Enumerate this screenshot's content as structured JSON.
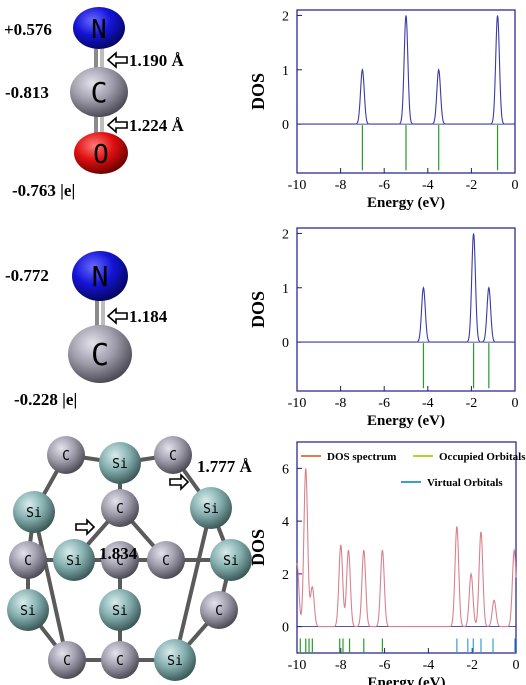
{
  "molecules": {
    "nco": {
      "atoms": [
        {
          "symbol": "N",
          "charge": "+0.576"
        },
        {
          "symbol": "C",
          "charge": "-0.813"
        },
        {
          "symbol": "O",
          "charge": "-0.763 |e|"
        }
      ],
      "bonds": [
        "1.190 Å",
        "1.224 Å"
      ]
    },
    "cn": {
      "atoms": [
        {
          "symbol": "N",
          "charge": "-0.772"
        },
        {
          "symbol": "C",
          "charge": "-0.228 |e|"
        }
      ],
      "bonds": [
        "1.184"
      ]
    },
    "cage": {
      "bond_labels": [
        "1.777 Å",
        "1.834"
      ],
      "atom_labels": [
        "C",
        "Si",
        "C",
        "Si",
        "C",
        "Si",
        "Si",
        "C",
        "C",
        "Si",
        "Si",
        "C",
        "Si",
        "Si",
        "C",
        "C",
        "Si",
        "C"
      ]
    }
  },
  "colors": {
    "dos_line_blue": "#3a3aa8",
    "occupied_green": "#2a9a2a",
    "dos_line_red": "#d9828c",
    "occupied_yellowgreen": "#b8d02a",
    "virtual_blue": "#3aa0d0",
    "legend_dos": "#e07a4a",
    "atom_N": "#1010d0",
    "atom_C": "#9a98a6",
    "atom_O": "#e01010",
    "atom_Si": "#7aa8a8",
    "axes": "#1a1a8c"
  },
  "chart_data": [
    {
      "type": "line",
      "xlabel": "Energy (eV)",
      "ylabel": "DOS",
      "xlim": [
        -10,
        0
      ],
      "ylim": [
        -0.9,
        2.1
      ],
      "xticks": [
        "-10",
        "-8",
        "-6",
        "-4",
        "-2",
        "0"
      ],
      "yticks": [
        "0",
        "1",
        "2"
      ],
      "series": [
        {
          "peaks": [
            {
              "x": -7.0,
              "h": 1.0
            },
            {
              "x": -5.0,
              "h": 2.0
            },
            {
              "x": -3.5,
              "h": 1.0
            },
            {
              "x": -0.8,
              "h": 2.0
            }
          ]
        }
      ],
      "occupied_orbitals": [
        -7.0,
        -5.0,
        -3.5,
        -0.8
      ],
      "virtual_orbitals": []
    },
    {
      "type": "line",
      "xlabel": "Energy (eV)",
      "ylabel": "DOS",
      "xlim": [
        -10,
        0
      ],
      "ylim": [
        -0.9,
        2.1
      ],
      "xticks": [
        "-10",
        "-8",
        "-6",
        "-4",
        "-2",
        "0"
      ],
      "yticks": [
        "0",
        "1",
        "2"
      ],
      "series": [
        {
          "peaks": [
            {
              "x": -4.2,
              "h": 1.0
            },
            {
              "x": -1.9,
              "h": 2.0
            },
            {
              "x": -1.2,
              "h": 1.0
            }
          ]
        }
      ],
      "occupied_orbitals": [
        -4.2,
        -1.9,
        -1.2
      ],
      "virtual_orbitals": []
    },
    {
      "type": "line",
      "xlabel": "Energy (eV)",
      "ylabel": "DOS",
      "xlim": [
        -10,
        0
      ],
      "ylim": [
        -1.0,
        7.0
      ],
      "xticks": [
        "-10",
        "-8",
        "-6",
        "-4",
        "-2",
        "0"
      ],
      "yticks": [
        "0",
        "2",
        "4",
        "6"
      ],
      "legend": [
        "DOS spectrum",
        "Occupied Orbitals",
        "Virtual Orbitals"
      ],
      "series": [
        {
          "name": "DOS spectrum",
          "peaks": [
            {
              "x": -10.0,
              "h": 2.4
            },
            {
              "x": -9.6,
              "h": 6.0
            },
            {
              "x": -9.3,
              "h": 1.5
            },
            {
              "x": -8.0,
              "h": 3.1
            },
            {
              "x": -7.65,
              "h": 2.9
            },
            {
              "x": -6.95,
              "h": 2.9
            },
            {
              "x": -6.1,
              "h": 2.9
            },
            {
              "x": -2.7,
              "h": 3.8
            },
            {
              "x": -2.05,
              "h": 2.0
            },
            {
              "x": -1.6,
              "h": 3.6
            },
            {
              "x": -1.0,
              "h": 1.0
            },
            {
              "x": -0.08,
              "h": 2.9
            }
          ]
        }
      ],
      "occupied_orbitals": [
        -9.85,
        -9.6,
        -9.45,
        -9.3,
        -8.05,
        -7.9,
        -7.6,
        -6.95,
        -6.1
      ],
      "virtual_orbitals": [
        -2.7,
        -2.2,
        -1.95,
        -1.6,
        -1.05,
        -0.05
      ]
    }
  ]
}
